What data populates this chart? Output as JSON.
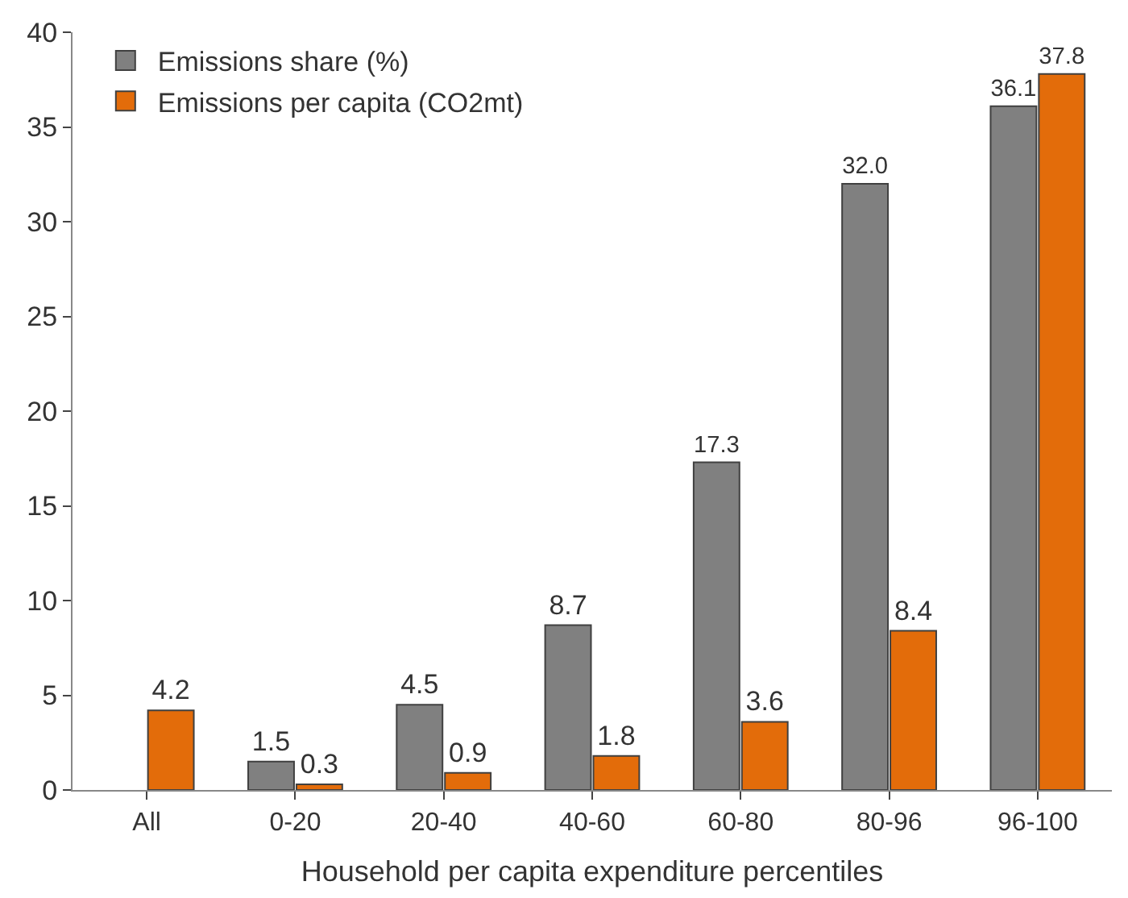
{
  "chart_data": {
    "type": "bar",
    "xlabel": "Household per capita expenditure percentiles",
    "categories": [
      "All",
      "0-20",
      "20-40",
      "40-60",
      "60-80",
      "80-96",
      "96-100"
    ],
    "series": [
      {
        "name": "Emissions share (%)",
        "color": "#808080",
        "values": [
          null,
          1.5,
          4.5,
          8.7,
          17.3,
          32.0,
          36.1
        ],
        "value_labels": [
          null,
          "1.5",
          "4.5",
          "8.7",
          "17.3",
          "32.0",
          "36.1"
        ]
      },
      {
        "name": "Emissions per capita (CO2mt)",
        "color": "#e36c0a",
        "values": [
          4.2,
          0.3,
          0.9,
          1.8,
          3.6,
          8.4,
          37.8
        ],
        "value_labels": [
          "4.2",
          "0.3",
          "0.9",
          "1.8",
          "3.6",
          "8.4",
          "37.8"
        ]
      }
    ],
    "ylim": [
      0,
      40
    ],
    "yticks": [
      0,
      5,
      10,
      15,
      20,
      25,
      30,
      35,
      40
    ],
    "legend": "top left"
  }
}
